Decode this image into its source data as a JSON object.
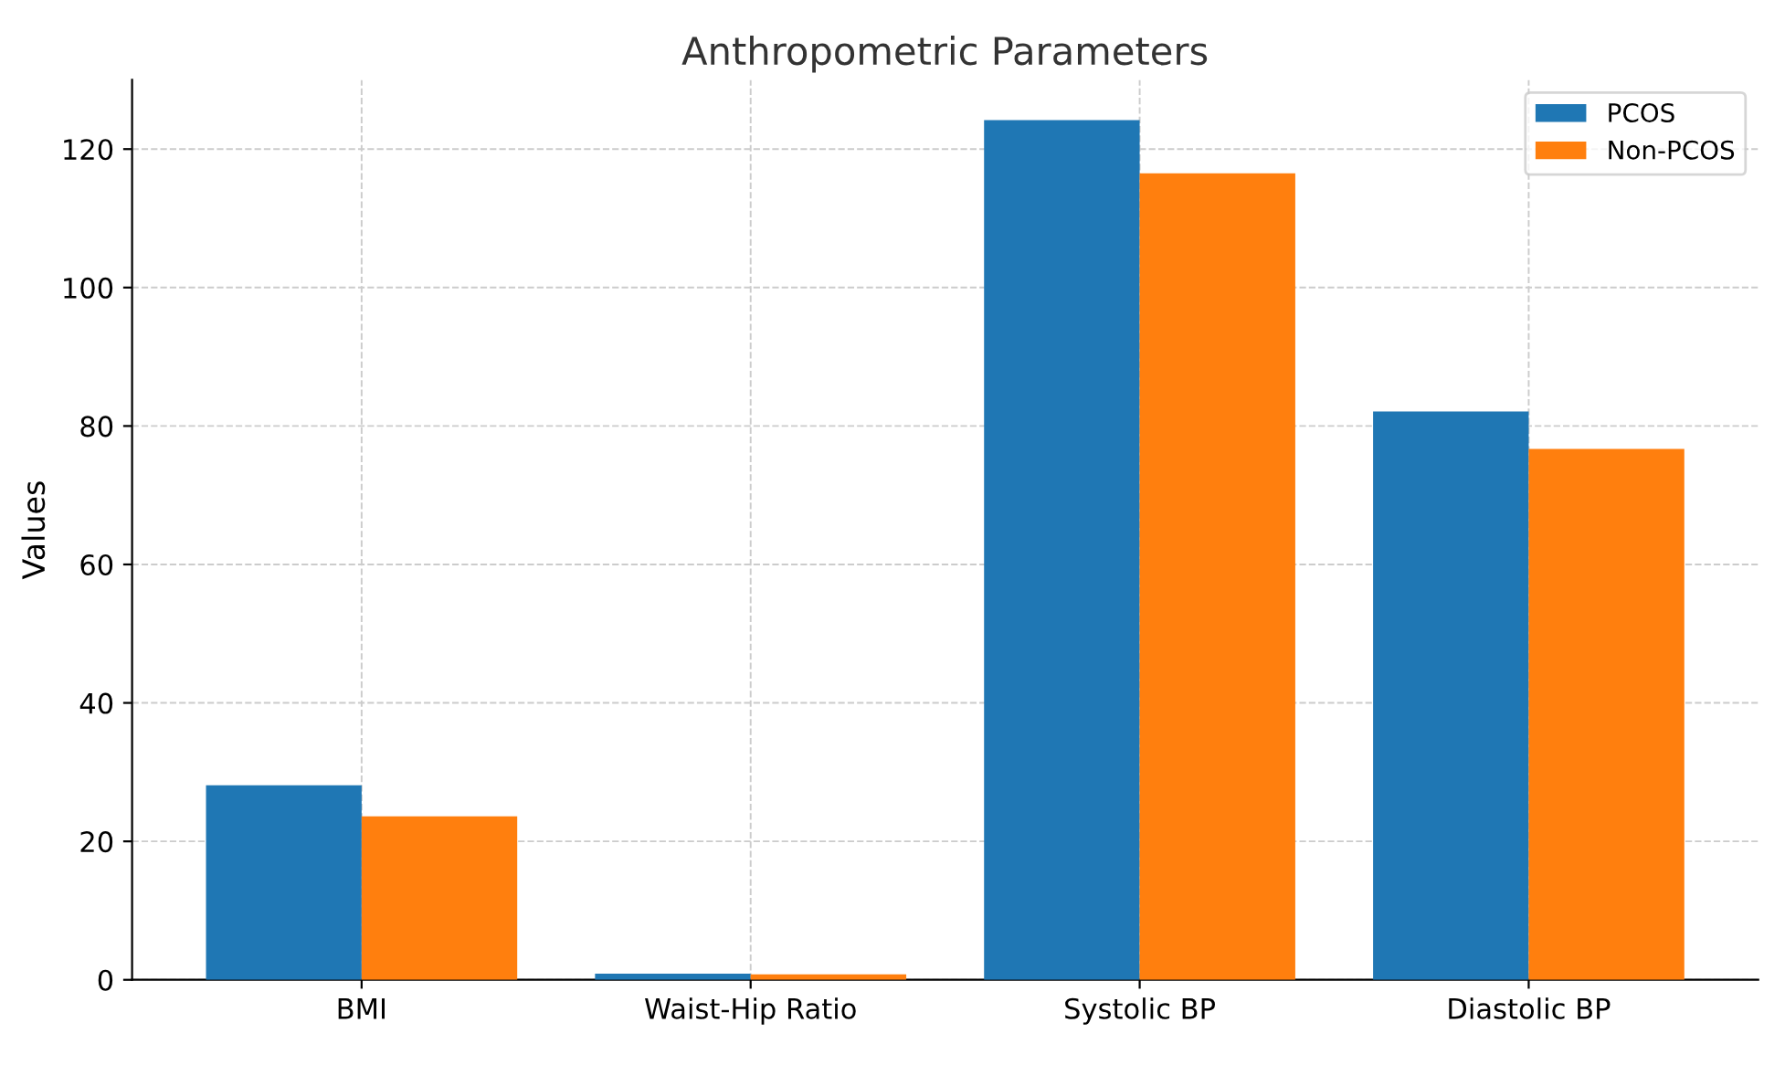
{
  "chart_data": {
    "type": "bar",
    "title": "Anthropometric Parameters",
    "ylabel": "Values",
    "categories": [
      "BMI",
      "Waist-Hip Ratio",
      "Systolic BP",
      "Diastolic BP"
    ],
    "series": [
      {
        "name": "PCOS",
        "color": "#1f77b4",
        "values": [
          28.1,
          0.9,
          124.2,
          82.1
        ]
      },
      {
        "name": "Non-PCOS",
        "color": "#ff7f0e",
        "values": [
          23.6,
          0.8,
          116.5,
          76.7
        ]
      }
    ],
    "ylim": [
      0,
      130
    ],
    "yticks": [
      0,
      20,
      40,
      60,
      80,
      100,
      120
    ],
    "grid": true,
    "legend": "top right"
  }
}
